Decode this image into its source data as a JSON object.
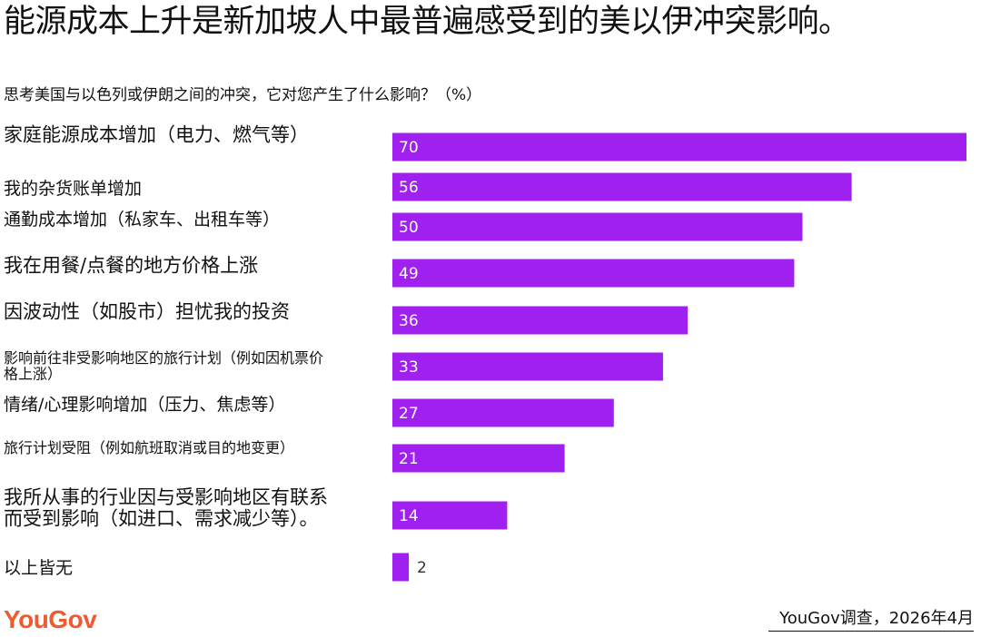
{
  "title": "能源成本上升是新加坡人中最普遍感受到的美以伊冲突影响。",
  "footer": {
    "logo": "YouGov",
    "source": "YouGov调查，2026年4月"
  },
  "colors": {
    "bar": "#a020f0",
    "bar_label_inside": "#ffffff",
    "bar_label_outside": "#333333",
    "logo": "#f05a30"
  },
  "chart_data": {
    "type": "bar",
    "orientation": "horizontal",
    "title": "能源成本上升是新加坡人中最普遍感受到的美以伊冲突影响。",
    "subtitle": "思考美国与以色列或伊朗之间的冲突，它对您产生了什么影响？（%）",
    "xlim": [
      0,
      70
    ],
    "grid": false,
    "categories": [
      [
        "家庭能源成本增加（电力、燃气等）"
      ],
      [
        "我的杂货账单增加"
      ],
      [
        "通勤成本增加（私家车、出租车等）"
      ],
      [
        "我在用餐/点餐的地方价格上涨"
      ],
      [
        "因波动性（如股市）担忧我的投资"
      ],
      [
        "影响前往非受影响地区的旅行计划（例如因机票价",
        "格上涨）"
      ],
      [
        "情绪/心理影响增加（压力、焦虑等）"
      ],
      [
        "旅行计划受阻（例如航班取消或目的地变更）"
      ],
      [
        "我所从事的行业因与受影响地区有联系",
        "而受到影响（如进口、需求减少等）。"
      ],
      [
        "以上皆无"
      ]
    ],
    "values": [
      70,
      56,
      50,
      49,
      36,
      33,
      27,
      21,
      14,
      2
    ]
  }
}
